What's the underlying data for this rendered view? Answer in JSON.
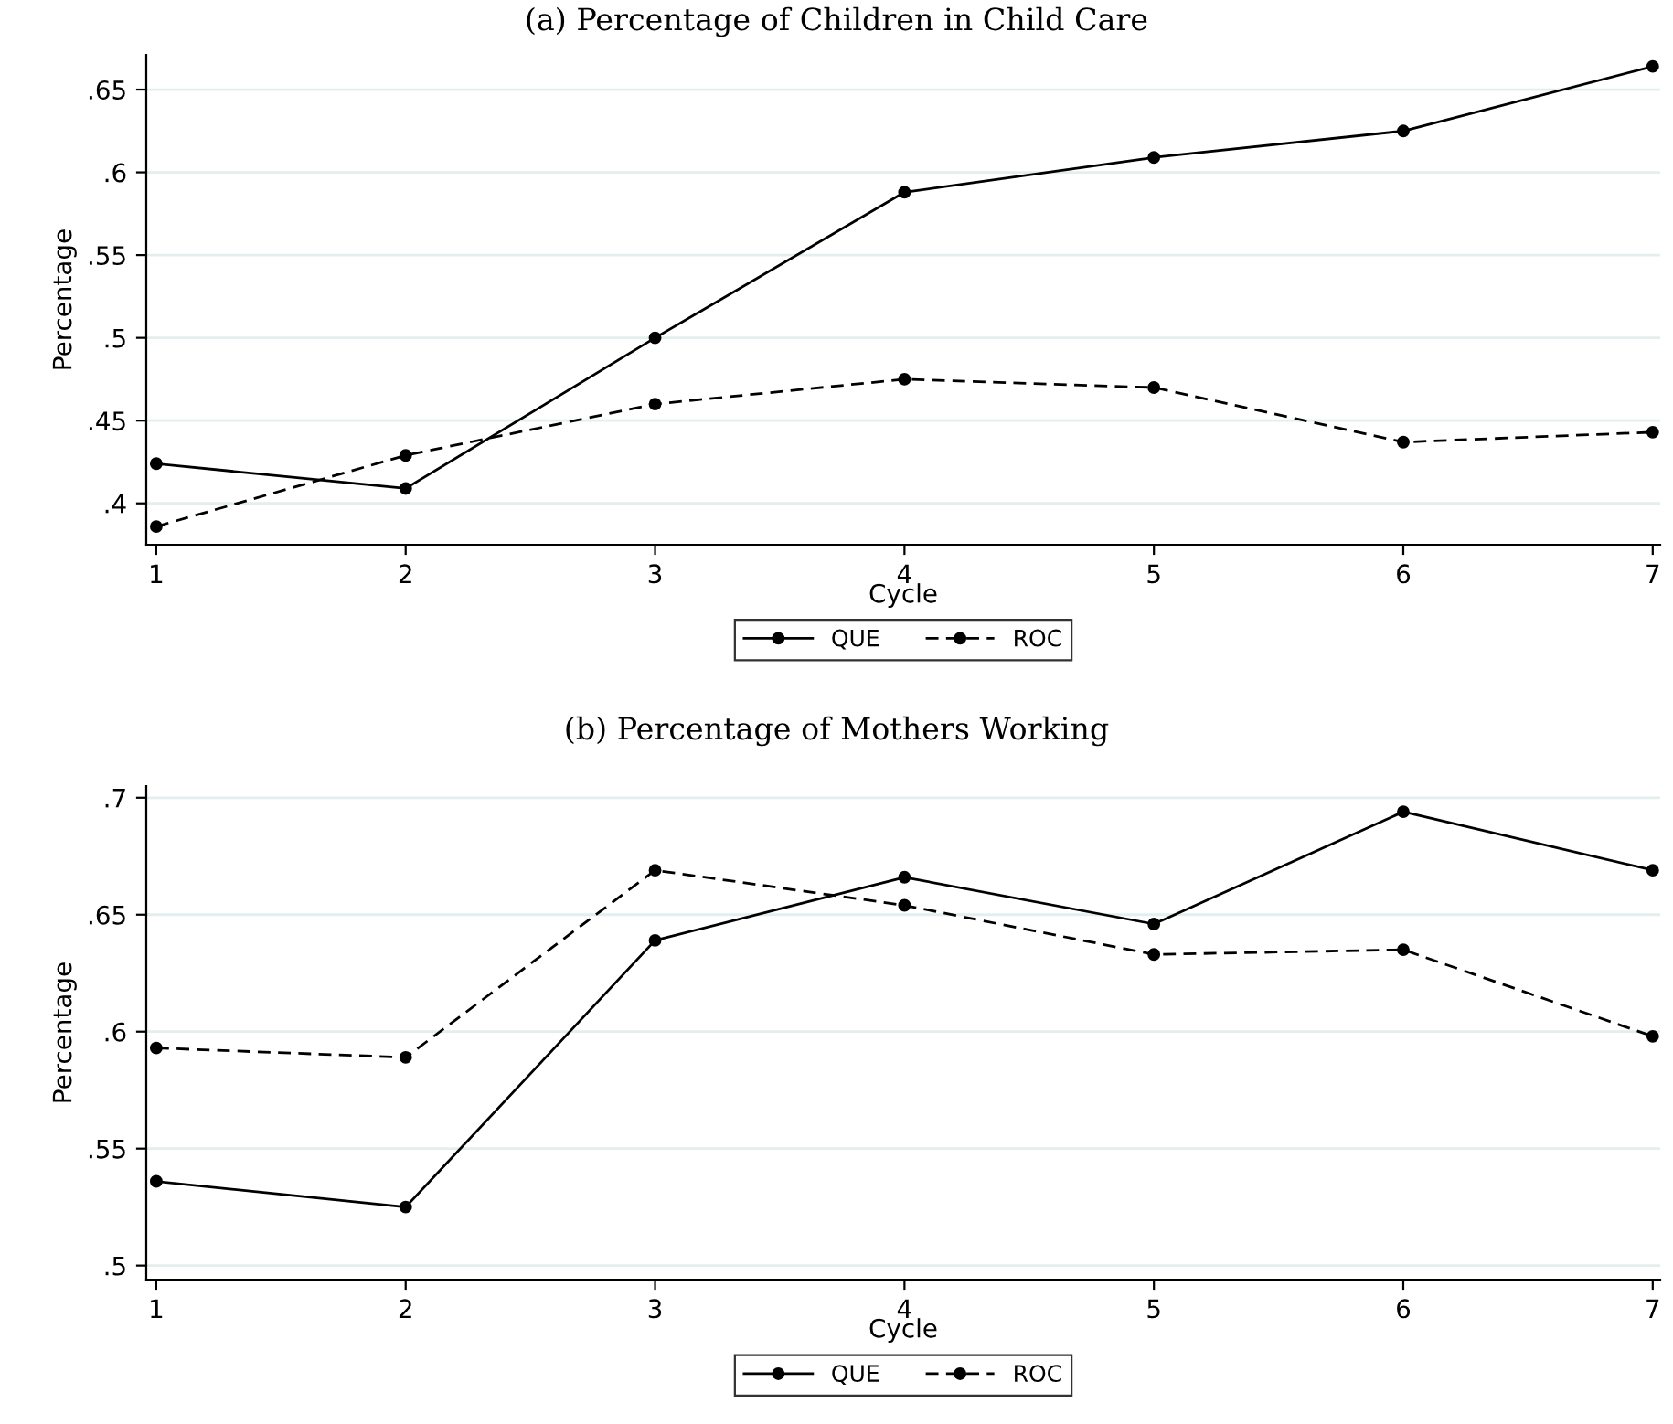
{
  "chart_data": [
    {
      "type": "line",
      "title": "(a) Percentage of Children in Child Care",
      "xlabel": "Cycle",
      "ylabel": "Percentage",
      "x": [
        1,
        2,
        3,
        4,
        5,
        6,
        7
      ],
      "xlim": [
        0.96,
        7.03
      ],
      "xticks": [
        1,
        2,
        3,
        4,
        5,
        6,
        7
      ],
      "ylim": [
        0.375,
        0.671
      ],
      "yticks": [
        {
          "value": 0.4,
          "label": ".4"
        },
        {
          "value": 0.45,
          "label": ".45"
        },
        {
          "value": 0.5,
          "label": ".5"
        },
        {
          "value": 0.55,
          "label": ".55"
        },
        {
          "value": 0.6,
          "label": ".6"
        },
        {
          "value": 0.65,
          "label": ".65"
        }
      ],
      "grid": "y",
      "legend": "bottom",
      "marker": "circle",
      "series": [
        {
          "name": "QUE",
          "color": "#000000",
          "line_style": "solid",
          "values": [
            0.424,
            0.409,
            0.5,
            0.588,
            0.609,
            0.625,
            0.664
          ]
        },
        {
          "name": "ROC",
          "color": "#000000",
          "line_style": "dashed",
          "values": [
            0.386,
            0.429,
            0.46,
            0.475,
            0.47,
            0.437,
            0.443
          ]
        }
      ]
    },
    {
      "type": "line",
      "title": "(b) Percentage of Mothers Working",
      "xlabel": "Cycle",
      "ylabel": "Percentage",
      "x": [
        1,
        2,
        3,
        4,
        5,
        6,
        7
      ],
      "xlim": [
        0.96,
        7.03
      ],
      "xticks": [
        1,
        2,
        3,
        4,
        5,
        6,
        7
      ],
      "ylim": [
        0.494,
        0.705
      ],
      "yticks": [
        {
          "value": 0.5,
          "label": ".5"
        },
        {
          "value": 0.55,
          "label": ".55"
        },
        {
          "value": 0.6,
          "label": ".6"
        },
        {
          "value": 0.65,
          "label": ".65"
        },
        {
          "value": 0.7,
          "label": ".7"
        }
      ],
      "grid": "y",
      "legend": "bottom",
      "marker": "circle",
      "series": [
        {
          "name": "QUE",
          "color": "#000000",
          "line_style": "solid",
          "values": [
            0.536,
            0.525,
            0.639,
            0.666,
            0.646,
            0.694,
            0.669
          ]
        },
        {
          "name": "ROC",
          "color": "#000000",
          "line_style": "dashed",
          "values": [
            0.593,
            0.589,
            0.669,
            0.654,
            0.633,
            0.635,
            0.598
          ]
        }
      ]
    }
  ]
}
